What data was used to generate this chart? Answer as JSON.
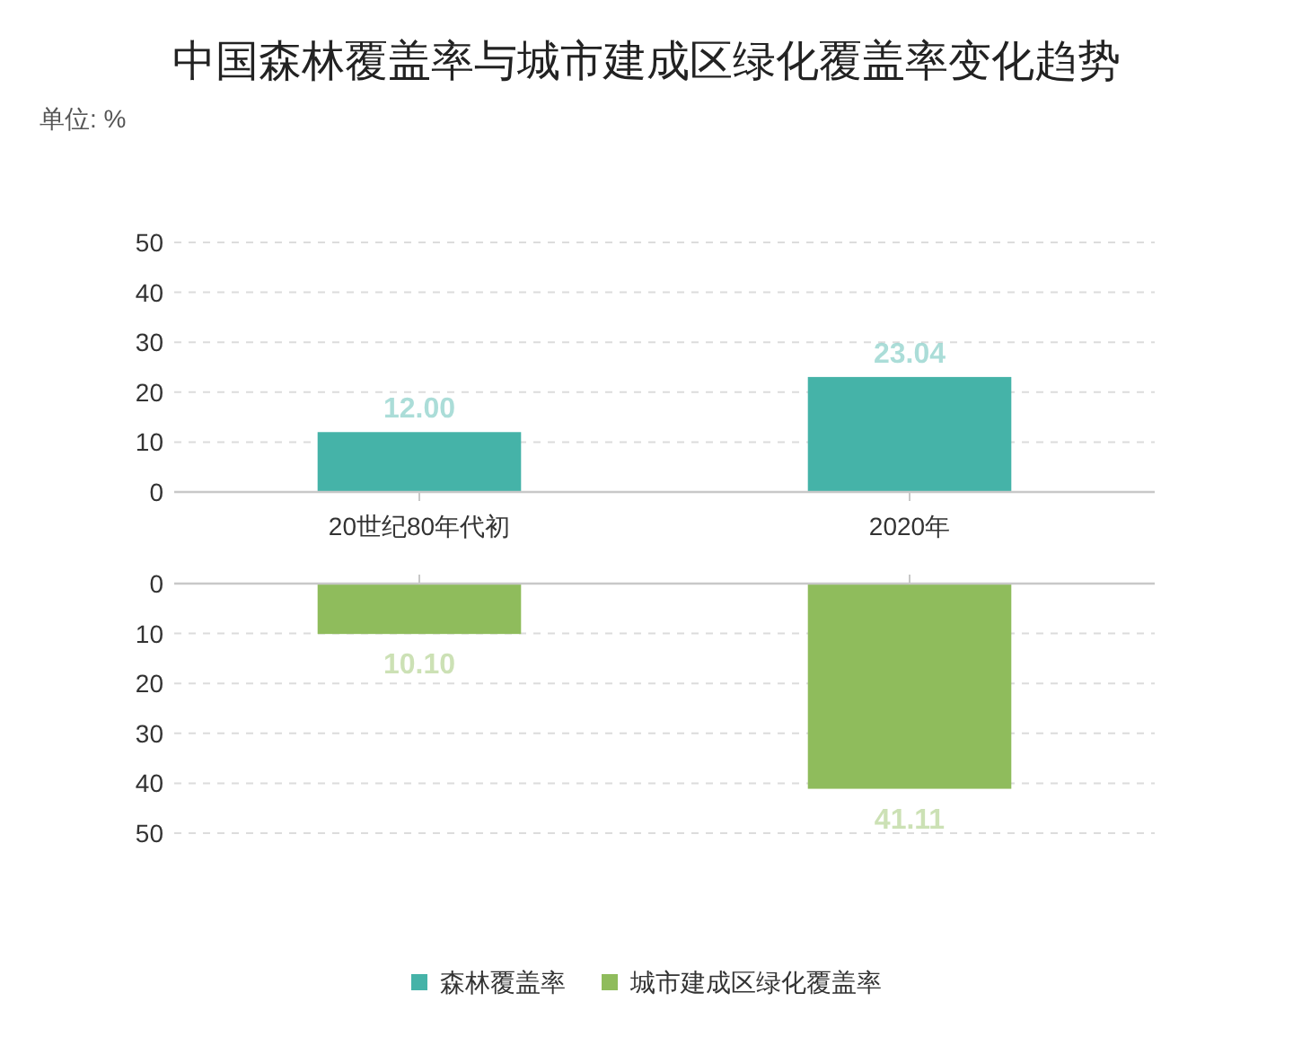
{
  "chart_data": [
    {
      "type": "bar",
      "title": "中国森林覆盖率与城市建成区绿化覆盖率变化趋势",
      "subtitle": "单位: %",
      "categories": [
        "20世纪80年代初",
        "2020年"
      ],
      "series": [
        {
          "name": "森林覆盖率",
          "color": "#45b3a8",
          "values": [
            12.0,
            23.04
          ],
          "value_labels": [
            "12.00",
            "23.04"
          ]
        }
      ],
      "ylim": [
        0,
        50
      ],
      "yticks": [
        0,
        10,
        20,
        30,
        40,
        50
      ],
      "grid": "y",
      "legend": "bottom"
    },
    {
      "type": "bar",
      "categories": [
        null,
        null
      ],
      "series": [
        {
          "name": "城市建成区绿化覆盖率",
          "color": "#8fbc5c",
          "values": [
            10.1,
            41.11
          ],
          "value_labels": [
            "10.10",
            "41.11"
          ]
        }
      ],
      "ylim": [
        50,
        0
      ],
      "yticks": [
        0,
        10,
        20,
        30,
        40,
        50
      ],
      "grid": "y",
      "tick_labels": "y",
      "legend": "bottom"
    }
  ]
}
